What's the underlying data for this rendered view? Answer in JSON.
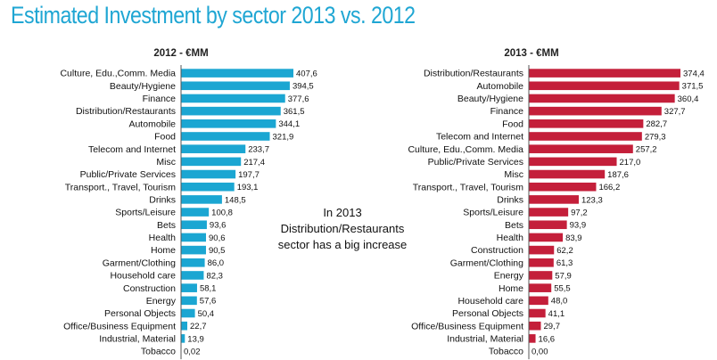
{
  "title": "Estimated Investment by sector 2013 vs. 2012",
  "annotation": [
    "In 2013",
    "Distribution/Restaurants",
    "sector has a big increase"
  ],
  "colors": {
    "title": "#1fa6d3",
    "bar_2012": "#1ba6d2",
    "bar_2013": "#c41f3a",
    "axis": "#555555"
  },
  "chart_data": [
    {
      "type": "bar",
      "orientation": "horizontal",
      "title": "2012 - €MM",
      "color": "#1ba6d2",
      "categories": [
        "Culture, Edu.,Comm. Media",
        "Beauty/Hygiene",
        "Finance",
        "Distribution/Restaurants",
        "Automobile",
        "Food",
        "Telecom and Internet",
        "Misc",
        "Public/Private Services",
        "Transport., Travel, Tourism",
        "Drinks",
        "Sports/Leisure",
        "Bets",
        "Health",
        "Home",
        "Garment/Clothing",
        "Household care",
        "Construction",
        "Energy",
        "Personal Objects",
        "Office/Business Equipment",
        "Industrial, Material",
        "Tobacco"
      ],
      "values": [
        407.6,
        394.5,
        377.6,
        361.5,
        344.1,
        321.9,
        233.7,
        217.4,
        197.7,
        193.1,
        148.5,
        100.8,
        93.6,
        90.6,
        90.5,
        86.0,
        82.3,
        58.1,
        57.6,
        50.4,
        22.7,
        13.9,
        0.02
      ],
      "value_labels": [
        "407,6",
        "394,5",
        "377,6",
        "361,5",
        "344,1",
        "321,9",
        "233,7",
        "217,4",
        "197,7",
        "193,1",
        "148,5",
        "100,8",
        "93,6",
        "90,6",
        "90,5",
        "86,0",
        "82,3",
        "58,1",
        "57,6",
        "50,4",
        "22,7",
        "13,9",
        "0,02"
      ]
    },
    {
      "type": "bar",
      "orientation": "horizontal",
      "title": "2013 - €MM",
      "color": "#c41f3a",
      "categories": [
        "Distribution/Restaurants",
        "Automobile",
        "Beauty/Hygiene",
        "Finance",
        "Food",
        "Telecom and Internet",
        "Culture, Edu.,Comm. Media",
        "Public/Private Services",
        "Misc",
        "Transport., Travel, Tourism",
        "Drinks",
        "Sports/Leisure",
        "Bets",
        "Health",
        "Construction",
        "Garment/Clothing",
        "Energy",
        "Home",
        "Household care",
        "Personal Objects",
        "Office/Business Equipment",
        "Industrial, Material",
        "Tobacco"
      ],
      "values": [
        374.4,
        371.5,
        360.4,
        327.7,
        282.7,
        279.3,
        257.2,
        217.0,
        187.6,
        166.2,
        123.3,
        97.2,
        93.9,
        83.9,
        62.2,
        61.3,
        57.9,
        55.5,
        48.0,
        41.1,
        29.7,
        16.6,
        0.0
      ],
      "value_labels": [
        "374,4",
        "371,5",
        "360,4",
        "327,7",
        "282,7",
        "279,3",
        "257,2",
        "217,0",
        "187,6",
        "166,2",
        "123,3",
        "97,2",
        "93,9",
        "83,9",
        "62,2",
        "61,3",
        "57,9",
        "55,5",
        "48,0",
        "41,1",
        "29,7",
        "16,6",
        "0,00"
      ]
    }
  ]
}
